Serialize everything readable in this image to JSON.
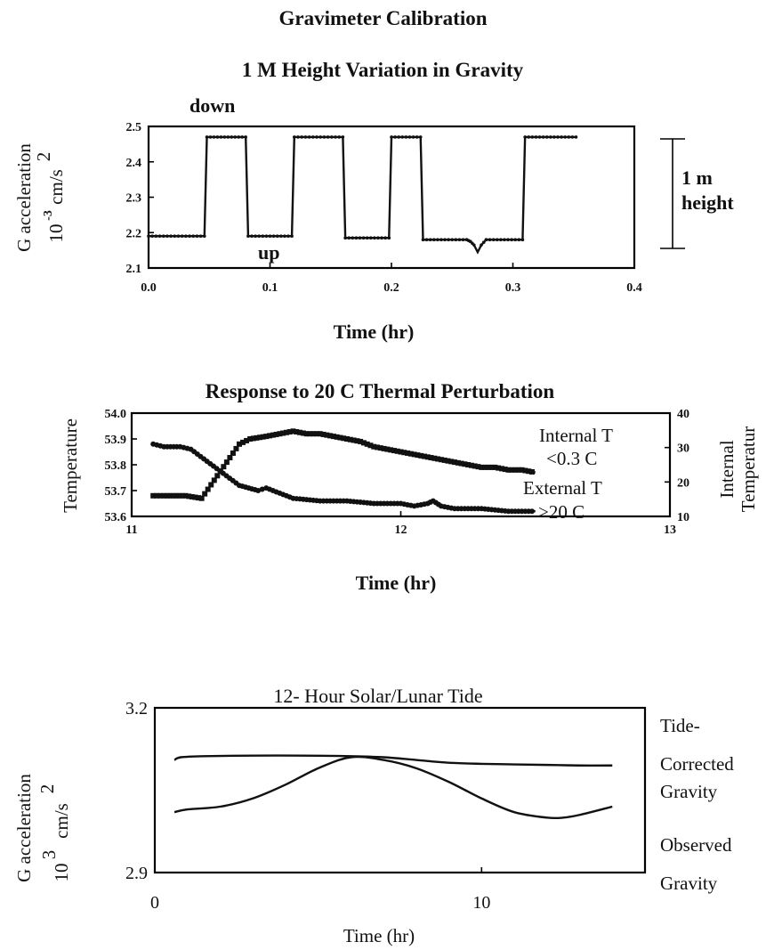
{
  "main_title": "Gravimeter Calibration",
  "chart_data": [
    {
      "type": "line",
      "title": "1 M Height Variation in Gravity",
      "xlabel": "Time (hr)",
      "ylabel_line1": "G acceleration",
      "ylabel_line2": "10",
      "ylabel_sup1": "-3",
      "ylabel_unit": "cm/s",
      "ylabel_sup2": "2",
      "xlim": [
        0.0,
        0.4
      ],
      "ylim": [
        2.1,
        2.5
      ],
      "x_ticks": [
        0.0,
        0.1,
        0.2,
        0.3,
        0.4
      ],
      "x_tick_labels": [
        "0.0",
        "0.1",
        "0.2",
        "0.3",
        "0.4"
      ],
      "y_ticks": [
        2.1,
        2.2,
        2.3,
        2.4,
        2.5
      ],
      "y_tick_labels": [
        "2.1",
        "2.2",
        "2.3",
        "2.4",
        "2.5"
      ],
      "annotations": {
        "down": "down",
        "up": "up",
        "scale_line1": "1 m",
        "scale_line2": "height"
      },
      "series": [
        {
          "x": [
            0.0,
            0.046,
            0.048,
            0.08,
            0.082,
            0.118,
            0.12,
            0.16,
            0.162,
            0.198,
            0.2,
            0.224,
            0.226,
            0.262,
            0.265,
            0.268,
            0.271,
            0.274,
            0.278,
            0.308,
            0.31,
            0.352
          ],
          "y": [
            2.19,
            2.19,
            2.47,
            2.47,
            2.19,
            2.19,
            2.47,
            2.47,
            2.185,
            2.185,
            2.47,
            2.47,
            2.18,
            2.18,
            2.175,
            2.165,
            2.145,
            2.165,
            2.18,
            2.18,
            2.47,
            2.47
          ]
        }
      ]
    },
    {
      "type": "line",
      "title": "Response to 20 C Thermal Perturbation",
      "xlabel": "Time (hr)",
      "ylabel_left": "Temperature",
      "ylabel_right_line1": "Internal",
      "ylabel_right_line2": "Temperatur",
      "xlim": [
        11,
        13
      ],
      "ylim_left": [
        53.6,
        54.0
      ],
      "ylim_right": [
        10,
        40
      ],
      "x_ticks": [
        11,
        12,
        13
      ],
      "x_tick_labels": [
        "11",
        "12",
        "13"
      ],
      "y_ticks_left": [
        53.6,
        53.7,
        53.8,
        53.9,
        54.0
      ],
      "y_tick_labels_left": [
        "53.6",
        "53.7",
        "53.8",
        "53.9",
        "54.0"
      ],
      "y_ticks_right": [
        10,
        20,
        30,
        40
      ],
      "y_tick_labels_right": [
        "10",
        "20",
        "30",
        "40"
      ],
      "annotations": {
        "internal_line1": "Internal T",
        "internal_line2": "<0.3 C",
        "external_line1": "External T",
        "external_line2": ">20 C"
      },
      "series": [
        {
          "axis": "left",
          "x": [
            11.08,
            11.12,
            11.2,
            11.26,
            11.4,
            11.44,
            11.5,
            11.55,
            11.6,
            11.65,
            11.7,
            11.75,
            11.8,
            11.85,
            11.9,
            11.95,
            12.0,
            12.05,
            12.1,
            12.15,
            12.2,
            12.25,
            12.3,
            12.35,
            12.4,
            12.45,
            12.5
          ],
          "y": [
            53.68,
            53.68,
            53.68,
            53.67,
            53.88,
            53.9,
            53.91,
            53.92,
            53.93,
            53.92,
            53.92,
            53.91,
            53.9,
            53.89,
            53.87,
            53.86,
            53.85,
            53.84,
            53.83,
            53.82,
            53.81,
            53.8,
            53.79,
            53.79,
            53.78,
            53.78,
            53.77
          ]
        },
        {
          "axis": "left",
          "x": [
            11.08,
            11.12,
            11.18,
            11.22,
            11.4,
            11.47,
            11.5,
            11.55,
            11.6,
            11.7,
            11.8,
            11.9,
            12.0,
            12.05,
            12.1,
            12.12,
            12.15,
            12.2,
            12.3,
            12.4,
            12.5
          ],
          "y": [
            53.88,
            53.87,
            53.87,
            53.86,
            53.72,
            53.7,
            53.71,
            53.69,
            53.67,
            53.66,
            53.66,
            53.65,
            53.65,
            53.64,
            53.65,
            53.66,
            53.64,
            53.63,
            53.63,
            53.62,
            53.62
          ]
        }
      ]
    },
    {
      "type": "line",
      "title": "12- Hour Solar/Lunar Tide",
      "xlabel": "Time (hr)",
      "ylabel_line1": "G acceleration",
      "ylabel_line2": "10",
      "ylabel_sup1": "3",
      "ylabel_unit": "cm/s",
      "ylabel_sup2": "2",
      "xlim": [
        0,
        15
      ],
      "ylim": [
        2.9,
        3.2
      ],
      "x_ticks": [
        0,
        10
      ],
      "x_tick_labels": [
        "0",
        "10"
      ],
      "y_ticks": [
        2.9,
        3.2
      ],
      "y_tick_labels": [
        "2.9",
        "3.2"
      ],
      "annotations": {
        "tide_line1": "Tide-",
        "tide_line2": "Corrected",
        "tide_line3": "Gravity",
        "obs_line1": "Observed",
        "obs_line2": "Gravity"
      },
      "series": [
        {
          "x": [
            0.6,
            0.8,
            1.5,
            3,
            4.5,
            6,
            7,
            8,
            9,
            10,
            11,
            12,
            13,
            14
          ],
          "y": [
            3.105,
            3.11,
            3.112,
            3.113,
            3.113,
            3.112,
            3.11,
            3.105,
            3.1,
            3.098,
            3.097,
            3.096,
            3.095,
            3.095
          ]
        },
        {
          "x": [
            0.6,
            1,
            2,
            3,
            4,
            5,
            6,
            7,
            8,
            9,
            10,
            11,
            12,
            12.5,
            13,
            14
          ],
          "y": [
            3.01,
            3.015,
            3.02,
            3.035,
            3.06,
            3.09,
            3.11,
            3.105,
            3.09,
            3.065,
            3.035,
            3.01,
            3.0,
            3.0,
            3.005,
            3.02
          ]
        }
      ]
    }
  ]
}
